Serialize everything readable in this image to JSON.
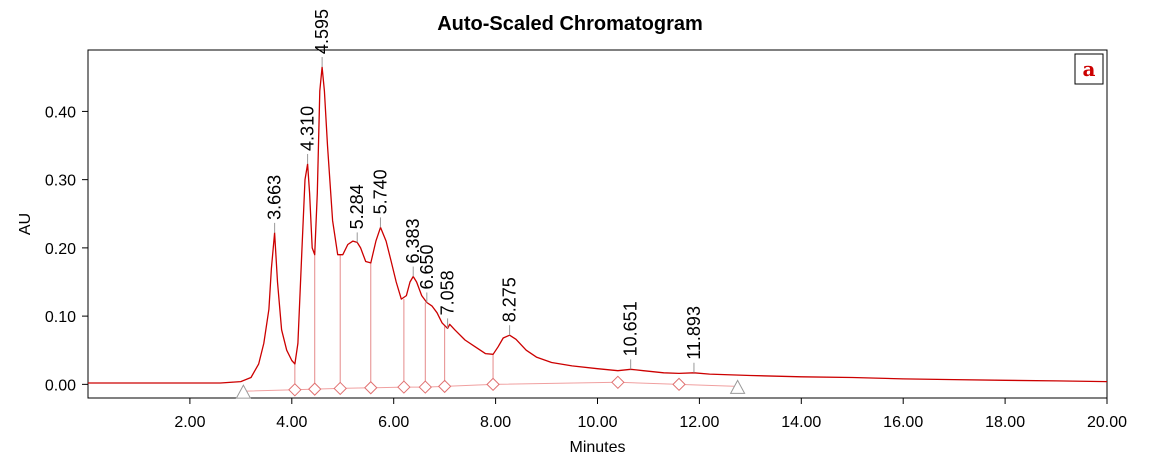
{
  "chart_data": {
    "type": "line",
    "title": "Auto-Scaled Chromatogram",
    "xlabel": "Minutes",
    "ylabel": "AU",
    "xlim": [
      0.0,
      20.0
    ],
    "ylim": [
      -0.02,
      0.49
    ],
    "x_ticks": [
      "2.00",
      "4.00",
      "6.00",
      "8.00",
      "10.00",
      "12.00",
      "14.00",
      "16.00",
      "18.00",
      "20.00"
    ],
    "y_ticks": [
      "0.00",
      "0.10",
      "0.20",
      "0.30",
      "0.40"
    ],
    "panel_label": "a",
    "line_color": "#cc0000",
    "series": [
      {
        "x": [
          0.0,
          1.0,
          2.0,
          2.6,
          3.0,
          3.2,
          3.35,
          3.45,
          3.55,
          3.6,
          3.663,
          3.72,
          3.8,
          3.9,
          4.0,
          4.06,
          4.12,
          4.2,
          4.26,
          4.31,
          4.35,
          4.4,
          4.45,
          4.5,
          4.55,
          4.595,
          4.64,
          4.7,
          4.8,
          4.9,
          5.0,
          5.1,
          5.2,
          5.284,
          5.35,
          5.45,
          5.55,
          5.65,
          5.74,
          5.85,
          5.95,
          6.05,
          6.15,
          6.25,
          6.32,
          6.383,
          6.45,
          6.55,
          6.65,
          6.75,
          6.85,
          6.95,
          7.058,
          7.1,
          7.2,
          7.4,
          7.6,
          7.8,
          7.95,
          8.05,
          8.15,
          8.275,
          8.4,
          8.6,
          8.8,
          9.1,
          9.5,
          10.0,
          10.4,
          10.651,
          10.9,
          11.3,
          11.6,
          11.893,
          12.2,
          13.0,
          14.0,
          15.0,
          16.0,
          17.0,
          18.0,
          19.0,
          20.0
        ],
        "y": [
          0.002,
          0.002,
          0.002,
          0.002,
          0.004,
          0.01,
          0.03,
          0.06,
          0.11,
          0.17,
          0.222,
          0.15,
          0.08,
          0.05,
          0.035,
          0.03,
          0.06,
          0.2,
          0.3,
          0.323,
          0.28,
          0.2,
          0.19,
          0.28,
          0.43,
          0.465,
          0.43,
          0.35,
          0.24,
          0.19,
          0.19,
          0.205,
          0.21,
          0.208,
          0.2,
          0.18,
          0.178,
          0.21,
          0.23,
          0.21,
          0.18,
          0.15,
          0.125,
          0.13,
          0.15,
          0.158,
          0.15,
          0.13,
          0.12,
          0.115,
          0.105,
          0.09,
          0.082,
          0.088,
          0.08,
          0.065,
          0.055,
          0.045,
          0.044,
          0.055,
          0.068,
          0.072,
          0.066,
          0.05,
          0.04,
          0.032,
          0.027,
          0.023,
          0.02,
          0.022,
          0.02,
          0.017,
          0.016,
          0.017,
          0.015,
          0.013,
          0.011,
          0.01,
          0.008,
          0.007,
          0.006,
          0.005,
          0.004
        ]
      }
    ],
    "peaks": [
      {
        "label": "3.663",
        "x": 3.663,
        "y": 0.222
      },
      {
        "label": "4.310",
        "x": 4.31,
        "y": 0.323
      },
      {
        "label": "4.595",
        "x": 4.595,
        "y": 0.465
      },
      {
        "label": "5.284",
        "x": 5.284,
        "y": 0.208
      },
      {
        "label": "5.740",
        "x": 5.74,
        "y": 0.23
      },
      {
        "label": "6.383",
        "x": 6.383,
        "y": 0.158
      },
      {
        "label": "6.650",
        "x": 6.65,
        "y": 0.12
      },
      {
        "label": "7.058",
        "x": 7.058,
        "y": 0.082
      },
      {
        "label": "8.275",
        "x": 8.275,
        "y": 0.072
      },
      {
        "label": "10.651",
        "x": 10.651,
        "y": 0.022
      },
      {
        "label": "11.893",
        "x": 11.893,
        "y": 0.017
      }
    ],
    "drop_lines": [
      {
        "x": 4.06,
        "y": 0.03
      },
      {
        "x": 4.45,
        "y": 0.19
      },
      {
        "x": 4.95,
        "y": 0.19
      },
      {
        "x": 5.55,
        "y": 0.178
      },
      {
        "x": 6.2,
        "y": 0.125
      },
      {
        "x": 6.62,
        "y": 0.12
      },
      {
        "x": 7.0,
        "y": 0.085
      },
      {
        "x": 7.95,
        "y": 0.044
      }
    ],
    "baseline": [
      {
        "x": 3.05,
        "y": -0.01
      },
      {
        "x": 4.06,
        "y": -0.008
      },
      {
        "x": 4.45,
        "y": -0.007
      },
      {
        "x": 4.95,
        "y": -0.006
      },
      {
        "x": 5.55,
        "y": -0.005
      },
      {
        "x": 6.2,
        "y": -0.004
      },
      {
        "x": 6.62,
        "y": -0.004
      },
      {
        "x": 7.0,
        "y": -0.003
      },
      {
        "x": 7.95,
        "y": 0.0
      },
      {
        "x": 10.4,
        "y": 0.003
      },
      {
        "x": 11.6,
        "y": 0.0
      },
      {
        "x": 12.75,
        "y": -0.003
      }
    ],
    "markers": [
      {
        "shape": "triangle",
        "x": 3.05,
        "y": -0.01
      },
      {
        "shape": "diamond",
        "x": 4.06,
        "y": -0.008
      },
      {
        "shape": "diamond",
        "x": 4.45,
        "y": -0.007
      },
      {
        "shape": "diamond",
        "x": 4.95,
        "y": -0.006
      },
      {
        "shape": "diamond",
        "x": 5.55,
        "y": -0.005
      },
      {
        "shape": "diamond",
        "x": 6.2,
        "y": -0.004
      },
      {
        "shape": "diamond",
        "x": 6.62,
        "y": -0.004
      },
      {
        "shape": "diamond",
        "x": 7.0,
        "y": -0.003
      },
      {
        "shape": "diamond",
        "x": 7.95,
        "y": 0.0
      },
      {
        "shape": "diamond",
        "x": 10.4,
        "y": 0.003
      },
      {
        "shape": "diamond",
        "x": 11.6,
        "y": 0.0
      },
      {
        "shape": "triangle",
        "x": 12.75,
        "y": -0.003
      }
    ]
  }
}
